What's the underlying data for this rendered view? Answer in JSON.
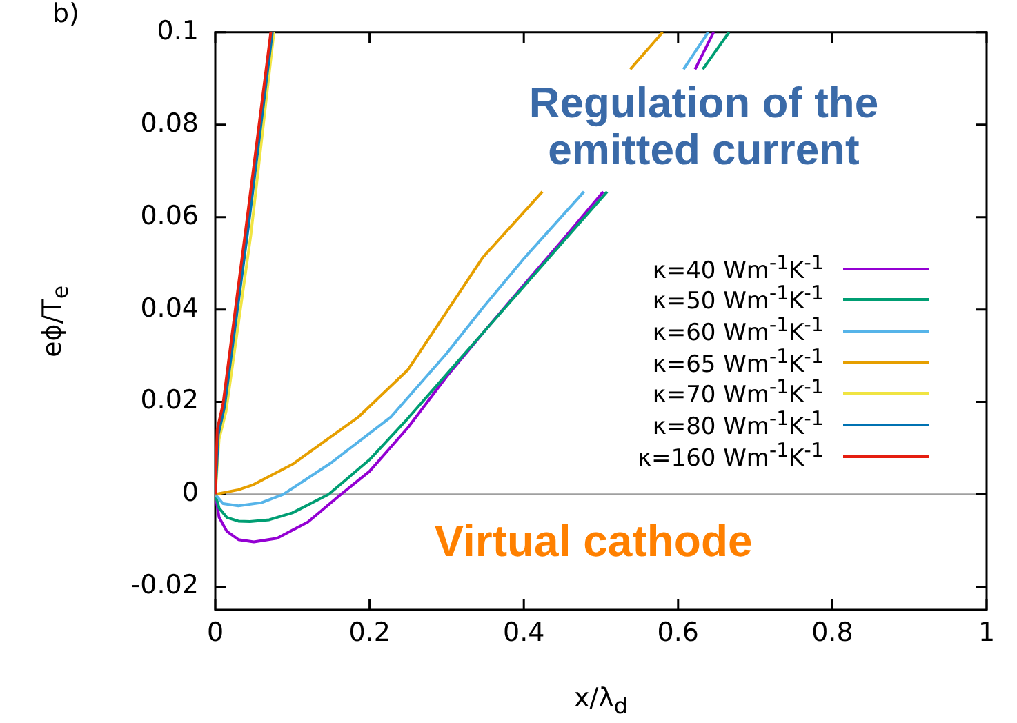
{
  "chart_data": {
    "type": "line",
    "xlabel": "x/λ$_{d}$",
    "ylabel": "eϕ/T$_{e}$",
    "annotations": [
      "b)",
      "Regulation of the emitted current",
      "Virtual cathode"
    ],
    "xlim": [
      0,
      1
    ],
    "xticks": [
      0,
      0.2,
      0.4,
      0.6,
      0.8,
      1
    ],
    "ylim": [
      -0.025,
      0.1
    ],
    "yticks": [
      -0.02,
      0,
      0.02,
      0.04,
      0.06,
      0.08,
      0.1
    ],
    "grid": false,
    "legend": "right",
    "marker": "none",
    "line_style": "solid",
    "ref_lines": [
      {
        "axis": "y",
        "value": 0,
        "color": "#a0a0a0"
      }
    ],
    "series": [
      {
        "name": "κ=40 Wm$^{-1}$K$^{-1}$",
        "color": "#9400d3",
        "x": [
          0,
          0.005,
          0.015,
          0.03,
          0.05,
          0.08,
          0.12,
          0.163,
          0.2,
          0.25,
          0.3,
          0.35,
          0.4,
          0.45,
          0.503,
          0.56,
          0.622,
          0.646
        ],
        "values": [
          0,
          -0.005,
          -0.008,
          -0.0098,
          -0.0103,
          -0.0095,
          -0.006,
          0,
          0.005,
          0.0145,
          0.0255,
          0.0355,
          0.0453,
          0.055,
          0.0655,
          null,
          0.092,
          0.1
        ]
      },
      {
        "name": "κ=50 Wm$^{-1}$K$^{-1}$",
        "color": "#009e73",
        "x": [
          0,
          0.005,
          0.015,
          0.03,
          0.045,
          0.07,
          0.1,
          0.147,
          0.2,
          0.25,
          0.3,
          0.35,
          0.4,
          0.45,
          0.508,
          0.57,
          0.632,
          0.666
        ],
        "values": [
          0,
          -0.003,
          -0.005,
          -0.0058,
          -0.0059,
          -0.0055,
          -0.004,
          0,
          0.0075,
          0.0165,
          0.026,
          0.0355,
          0.045,
          0.0545,
          0.0655,
          null,
          0.092,
          0.1
        ]
      },
      {
        "name": "κ=60 Wm$^{-1}$K$^{-1}$",
        "color": "#56b4e9",
        "x": [
          0,
          0.01,
          0.03,
          0.06,
          0.088,
          0.15,
          0.228,
          0.3,
          0.347,
          0.4,
          0.478,
          0.55,
          0.607,
          0.639
        ],
        "values": [
          0,
          -0.002,
          -0.0025,
          -0.0018,
          0,
          0.0068,
          0.0168,
          0.0305,
          0.0404,
          0.051,
          0.0655,
          null,
          0.092,
          0.1
        ]
      },
      {
        "name": "κ=65 Wm$^{-1}$K$^{-1}$",
        "color": "#e69f00",
        "x": [
          0,
          0.03,
          0.048,
          0.1,
          0.186,
          0.25,
          0.347,
          0.424,
          0.48,
          0.538,
          0.58
        ],
        "values": [
          0,
          0.001,
          0.002,
          0.0065,
          0.0168,
          0.027,
          0.0513,
          0.0655,
          null,
          0.092,
          0.1
        ]
      },
      {
        "name": "κ=70 Wm$^{-1}$K$^{-1}$",
        "color": "#f0e442",
        "x": [
          0,
          0.005,
          0.014,
          0.046,
          0.076
        ],
        "values": [
          0,
          0.012,
          0.018,
          0.056,
          0.1
        ]
      },
      {
        "name": "κ=80 Wm$^{-1}$K$^{-1}$",
        "color": "#0072b2",
        "x": [
          0,
          0.004,
          0.012,
          0.043,
          0.074
        ],
        "values": [
          0,
          0.013,
          0.019,
          0.058,
          0.1
        ]
      },
      {
        "name": "κ=160 Wm$^{-1}$K$^{-1}$",
        "color": "#e51e10",
        "x": [
          0,
          0.0025,
          0.01,
          0.04,
          0.072
        ],
        "values": [
          0,
          0.014,
          0.0195,
          0.058,
          0.1
        ]
      }
    ]
  }
}
